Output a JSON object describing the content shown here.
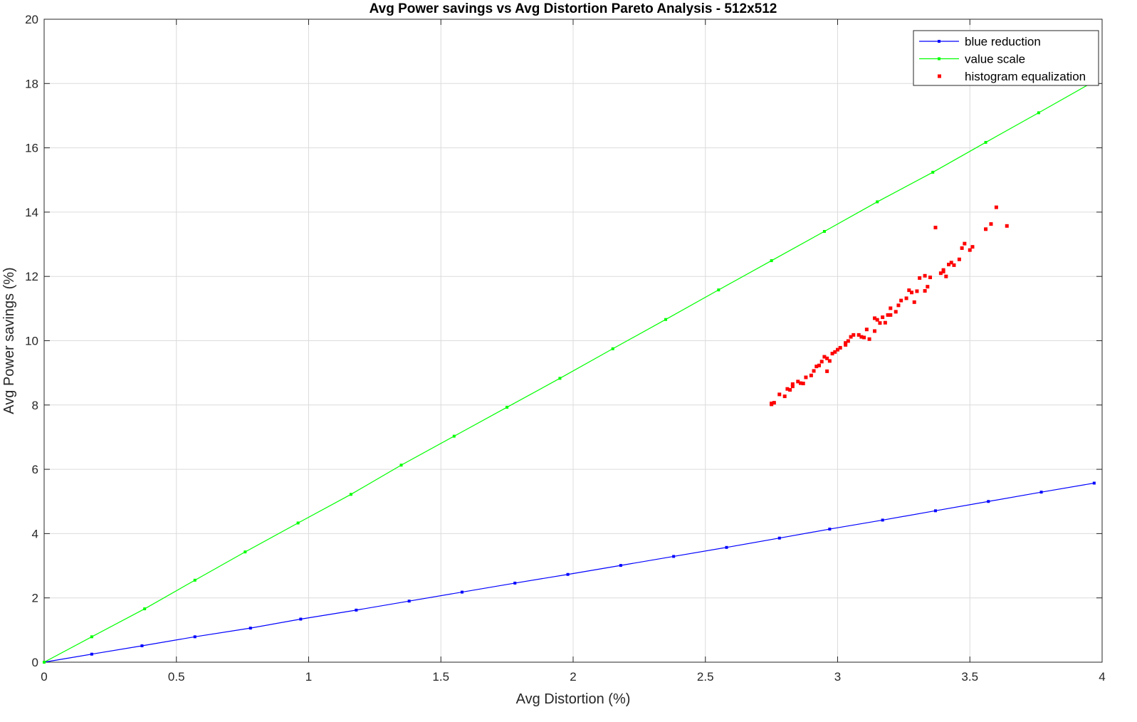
{
  "chart_data": {
    "type": "scatter",
    "title": "Avg Power savings vs Avg Distortion Pareto Analysis - 512x512",
    "xlabel": "Avg Distortion (%)",
    "ylabel": "Avg Power savings (%)",
    "xlim": [
      0,
      4
    ],
    "ylim": [
      0,
      20
    ],
    "xticks": [
      0,
      0.5,
      1,
      1.5,
      2,
      2.5,
      3,
      3.5,
      4
    ],
    "xtick_labels": [
      "0",
      "0.5",
      "1",
      "1.5",
      "2",
      "2.5",
      "3",
      "3.5",
      "4"
    ],
    "yticks": [
      0,
      2,
      4,
      6,
      8,
      10,
      12,
      14,
      16,
      18,
      20
    ],
    "ytick_labels": [
      "0",
      "2",
      "4",
      "6",
      "8",
      "10",
      "12",
      "14",
      "16",
      "18",
      "20"
    ],
    "grid": true,
    "legend_position": "top-right",
    "series": [
      {
        "name": "blue reduction",
        "style": "line-marker",
        "color": "#0000ff",
        "x": [
          0,
          0.18,
          0.37,
          0.57,
          0.78,
          0.97,
          1.18,
          1.38,
          1.58,
          1.78,
          1.98,
          2.18,
          2.38,
          2.58,
          2.78,
          2.97,
          3.17,
          3.37,
          3.57,
          3.77,
          3.97
        ],
        "y": [
          0,
          0.25,
          0.51,
          0.79,
          1.06,
          1.34,
          1.62,
          1.9,
          2.18,
          2.46,
          2.73,
          3.01,
          3.29,
          3.57,
          3.86,
          4.14,
          4.42,
          4.71,
          5.0,
          5.29,
          5.57
        ]
      },
      {
        "name": "value scale",
        "style": "line-marker",
        "color": "#00ff00",
        "x": [
          0,
          0.18,
          0.38,
          0.57,
          0.76,
          0.96,
          1.16,
          1.35,
          1.55,
          1.75,
          1.95,
          2.15,
          2.35,
          2.55,
          2.75,
          2.95,
          3.15,
          3.36,
          3.56,
          3.76,
          3.96
        ],
        "y": [
          0,
          0.79,
          1.66,
          2.55,
          3.43,
          4.33,
          5.22,
          6.13,
          7.03,
          7.93,
          8.83,
          9.75,
          10.66,
          11.58,
          12.49,
          13.4,
          14.32,
          15.24,
          16.17,
          17.09,
          18.02
        ]
      },
      {
        "name": "histogram equalization",
        "style": "marker",
        "color": "#ff0000",
        "x": [
          2.75,
          2.76,
          2.78,
          2.8,
          2.81,
          2.82,
          2.83,
          2.85,
          2.86,
          2.87,
          2.88,
          2.9,
          2.91,
          2.92,
          2.93,
          2.94,
          2.95,
          2.96,
          2.97,
          2.98,
          2.99,
          3.0,
          3.01,
          3.03,
          3.04,
          3.05,
          3.06,
          3.08,
          3.09,
          3.1,
          3.11,
          3.12,
          3.14,
          3.15,
          3.16,
          3.17,
          3.18,
          3.19,
          3.2,
          3.22,
          3.23,
          3.24,
          3.26,
          3.27,
          3.28,
          3.3,
          3.31,
          3.33,
          3.34,
          3.35,
          3.37,
          3.39,
          3.4,
          3.41,
          3.42,
          3.43,
          3.44,
          3.46,
          3.47,
          3.48,
          3.5,
          3.51,
          3.56,
          3.58,
          3.6,
          3.64,
          2.75,
          2.83,
          2.96,
          3.03,
          3.14,
          3.2,
          3.29,
          3.33,
          3.4
        ],
        "y": [
          8.05,
          8.07,
          8.33,
          8.27,
          8.5,
          8.47,
          8.65,
          8.73,
          8.68,
          8.67,
          8.86,
          8.92,
          9.06,
          9.2,
          9.23,
          9.35,
          9.5,
          9.45,
          9.37,
          9.6,
          9.65,
          9.72,
          9.78,
          9.87,
          9.99,
          10.12,
          10.18,
          10.18,
          10.12,
          10.1,
          10.35,
          10.05,
          10.3,
          10.65,
          10.55,
          10.73,
          10.56,
          10.8,
          11.01,
          10.9,
          11.1,
          11.25,
          11.32,
          11.57,
          11.5,
          11.54,
          11.95,
          11.55,
          11.68,
          11.97,
          13.52,
          12.1,
          12.15,
          12.0,
          12.37,
          12.43,
          12.35,
          12.53,
          12.88,
          13.02,
          12.82,
          12.92,
          13.47,
          13.63,
          14.15,
          13.57,
          8.02,
          8.58,
          9.05,
          9.93,
          10.7,
          10.8,
          11.2,
          12.02,
          12.2
        ]
      }
    ]
  }
}
